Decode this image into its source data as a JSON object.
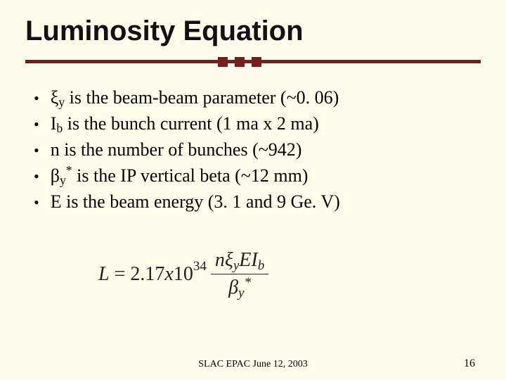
{
  "title": "Luminosity Equation",
  "accent_color": "#7a1d18",
  "background_color": "#fffde9",
  "bullets": [
    {
      "sym": "ξ",
      "sub": "y",
      "sup": "",
      "rest": " is the beam-beam parameter (~0. 06)"
    },
    {
      "sym": "I",
      "sub": "b",
      "sup": "",
      "rest": " is the bunch current (1 ma x 2 ma)"
    },
    {
      "sym": "n",
      "sub": "",
      "sup": "",
      "rest": " is the number of bunches (~942)"
    },
    {
      "sym": "β",
      "sub": "y",
      "sup": "*",
      "rest": " is the IP vertical beta (~12 mm)"
    },
    {
      "sym": "E",
      "sub": "",
      "sup": "",
      "rest": " is the beam energy (3. 1 and 9 Ge. V)"
    }
  ],
  "equation": {
    "lhs": "L",
    "coeff_base": "2.17",
    "coeff_mul": "x",
    "coeff_ten": "10",
    "coeff_exp": "34",
    "num_parts": {
      "n": "n",
      "xi": "ξ",
      "xi_sub": "y",
      "E": "E",
      "I": "I",
      "I_sub": "b"
    },
    "den_parts": {
      "beta": "β",
      "beta_sub": "y",
      "beta_sup": "*"
    }
  },
  "footer": "SLAC EPAC June 12, 2003",
  "page_number": "16",
  "fontsizes": {
    "title": 40,
    "body": 26,
    "equation": 28,
    "footer": 14
  }
}
